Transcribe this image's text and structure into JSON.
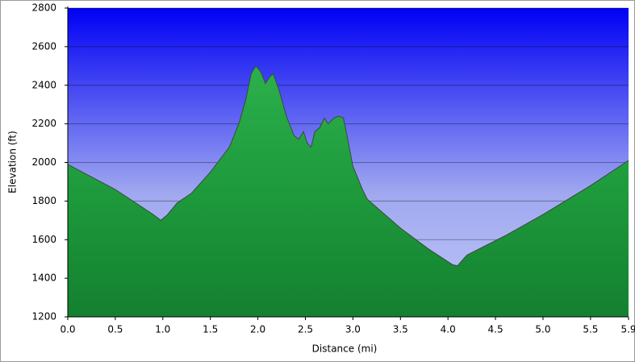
{
  "chart_data": {
    "type": "area",
    "xlabel": "Distance   (mi)",
    "ylabel": "Elevation (ft)",
    "x": [
      0,
      0.5,
      0.9,
      0.98,
      1.05,
      1.15,
      1.3,
      1.5,
      1.7,
      1.8,
      1.87,
      1.93,
      1.98,
      2.03,
      2.08,
      2.12,
      2.16,
      2.22,
      2.3,
      2.38,
      2.43,
      2.48,
      2.52,
      2.56,
      2.6,
      2.65,
      2.7,
      2.74,
      2.8,
      2.85,
      2.9,
      2.95,
      3.0,
      3.1,
      3.15,
      3.5,
      3.8,
      4.05,
      4.1,
      4.2,
      4.6,
      5.0,
      5.5,
      5.9
    ],
    "series": [
      {
        "values": [
          1990,
          1860,
          1730,
          1700,
          1730,
          1790,
          1840,
          1950,
          2080,
          2200,
          2320,
          2460,
          2500,
          2470,
          2410,
          2440,
          2460,
          2380,
          2240,
          2140,
          2120,
          2160,
          2100,
          2080,
          2160,
          2180,
          2230,
          2200,
          2230,
          2240,
          2230,
          2110,
          1980,
          1860,
          1810,
          1660,
          1550,
          1470,
          1465,
          1520,
          1620,
          1730,
          1880,
          2010
        ]
      }
    ],
    "xlim": [
      0,
      5.9
    ],
    "xticks": [
      {
        "value": 0,
        "label": "0.0"
      },
      0.5,
      {
        "value": 1,
        "label": "1.0"
      },
      1.5,
      {
        "value": 2,
        "label": "2.0"
      },
      2.5,
      {
        "value": 3,
        "label": "3.0"
      },
      3.5,
      {
        "value": 4,
        "label": "4.0"
      },
      4.5,
      {
        "value": 5,
        "label": "5.0"
      },
      5.5,
      5.9
    ],
    "ylim": [
      1200,
      2800
    ],
    "yticks": [
      1200,
      1400,
      1600,
      1800,
      2000,
      2200,
      2400,
      2600,
      2800
    ],
    "grid": true
  }
}
